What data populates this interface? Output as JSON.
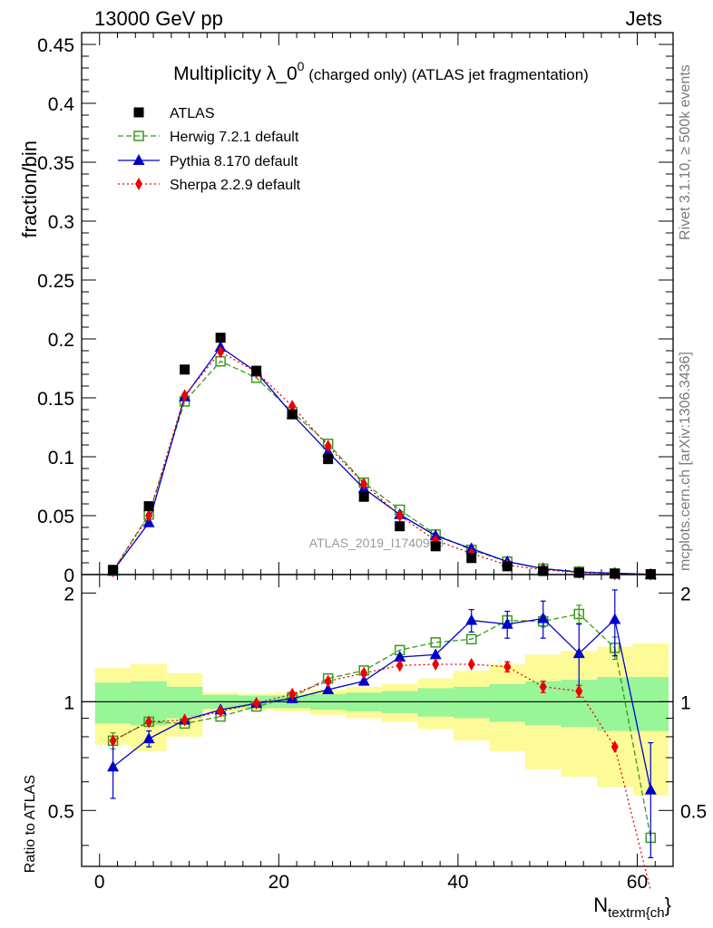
{
  "header": {
    "left": "13000 GeV pp",
    "right": "Jets"
  },
  "side_labels": {
    "rivet": "Rivet 3.1.10, ≥ 500k events",
    "mcplots": "mcplots.cern.ch [arXiv:1306.3436]"
  },
  "watermark": "ATLAS_2019_I1740909",
  "colors": {
    "ATLAS": "#000000",
    "Herwig": "#3a9a1a",
    "Pythia": "#0000cc",
    "Sherpa": "#ee0000",
    "band_inner": "#98f598",
    "band_outer": "#fdfb98"
  },
  "chart_data": [
    {
      "type": "scatter",
      "title_main": "Multiplicity λ_0",
      "title_sup": "0",
      "title_tail": " (charged only) (ATLAS jet fragmentation)",
      "ylabel": "fraction/bin",
      "xlim": [
        -2,
        64
      ],
      "ylim": [
        0,
        0.46
      ],
      "y_ticks": [
        "0",
        "0.05",
        "0.1",
        "0.15",
        "0.2",
        "0.25",
        "0.3",
        "0.35",
        "0.4",
        "0.45"
      ],
      "x": [
        1.5,
        5.5,
        9.5,
        13.5,
        17.5,
        21.5,
        25.5,
        29.5,
        33.5,
        37.5,
        41.5,
        45.5,
        49.5,
        53.5,
        57.5,
        61.5
      ],
      "series": [
        {
          "name": "ATLAS",
          "values": [
            0.004,
            0.058,
            0.174,
            0.201,
            0.173,
            0.136,
            0.098,
            0.066,
            0.041,
            0.024,
            0.014,
            0.007,
            0.003,
            0.0015,
            0.0007,
            0.0003
          ]
        },
        {
          "name": "Herwig 7.2.1 default",
          "values": [
            0.0032,
            0.051,
            0.147,
            0.181,
            0.167,
            0.138,
            0.111,
            0.078,
            0.055,
            0.034,
            0.021,
            0.011,
            0.005,
            0.0025,
            0.001,
            0.0002
          ]
        },
        {
          "name": "Pythia 8.170 default",
          "values": [
            0.003,
            0.044,
            0.151,
            0.193,
            0.172,
            0.136,
            0.104,
            0.073,
            0.051,
            0.033,
            0.022,
            0.011,
            0.005,
            0.002,
            0.0012,
            0.0002
          ]
        },
        {
          "name": "Sherpa 2.2.9 default",
          "values": [
            0.003,
            0.05,
            0.152,
            0.189,
            0.172,
            0.143,
            0.109,
            0.077,
            0.05,
            0.029,
            0.018,
            0.008,
            0.004,
            0.0017,
            0.0005,
            0.0001
          ]
        }
      ]
    },
    {
      "type": "scatter",
      "ylabel": "Ratio to ATLAS",
      "xlabel_main": "N",
      "xlabel_sub": "textrm{ch",
      "xlabel_close": "}",
      "xlim": [
        -2,
        64
      ],
      "ylim": [
        0.35,
        2.25
      ],
      "y_ticks_major": [
        0.5,
        1,
        2
      ],
      "y_tick_labels": [
        "0.5",
        "1",
        "2"
      ],
      "x_tick_labels": [
        "0",
        "20",
        "40",
        "60"
      ],
      "x_edges": [
        -0.5,
        3.5,
        7.5,
        11.5,
        15.5,
        19.5,
        23.5,
        27.5,
        31.5,
        35.5,
        39.5,
        43.5,
        47.5,
        51.5,
        55.5,
        59.5,
        63.5
      ],
      "band_inner": [
        0.13,
        0.14,
        0.1,
        0.045,
        0.04,
        0.04,
        0.05,
        0.06,
        0.07,
        0.09,
        0.1,
        0.12,
        0.14,
        0.15,
        0.17,
        0.17
      ],
      "band_outer": [
        0.24,
        0.27,
        0.2,
        0.06,
        0.05,
        0.06,
        0.08,
        0.1,
        0.12,
        0.16,
        0.22,
        0.27,
        0.35,
        0.38,
        0.42,
        0.45
      ],
      "x": [
        1.5,
        5.5,
        9.5,
        13.5,
        17.5,
        21.5,
        25.5,
        29.5,
        33.5,
        37.5,
        41.5,
        45.5,
        49.5,
        53.5,
        57.5,
        61.5
      ],
      "series": [
        {
          "name": "Herwig 7.2.1 default",
          "values": [
            0.78,
            0.88,
            0.87,
            0.91,
            0.97,
            1.03,
            1.16,
            1.22,
            1.39,
            1.46,
            1.49,
            1.68,
            1.67,
            1.75,
            1.41,
            0.42
          ],
          "errors": [
            0.04,
            0,
            0,
            0,
            0,
            0,
            0,
            0,
            0,
            0,
            0,
            0.05,
            0.06,
            0.1,
            0.1,
            0
          ]
        },
        {
          "name": "Pythia 8.170 default",
          "values": [
            0.66,
            0.79,
            0.89,
            0.95,
            0.99,
            1.02,
            1.08,
            1.14,
            1.33,
            1.35,
            1.68,
            1.64,
            1.7,
            1.36,
            1.69,
            0.57
          ],
          "errors": [
            0.12,
            0.04,
            0,
            0,
            0,
            0,
            0,
            0,
            0,
            0,
            0.12,
            0.14,
            0.2,
            0.28,
            0.35,
            0.2
          ]
        },
        {
          "name": "Sherpa 2.2.9 default",
          "values": [
            0.78,
            0.88,
            0.89,
            0.94,
            0.99,
            1.05,
            1.14,
            1.2,
            1.26,
            1.27,
            1.27,
            1.25,
            1.1,
            1.07,
            0.75,
            0.3
          ],
          "errors": [
            0,
            0,
            0,
            0,
            0,
            0,
            0,
            0,
            0,
            0,
            0,
            0.04,
            0.04,
            0.04,
            0,
            0
          ]
        }
      ]
    }
  ]
}
